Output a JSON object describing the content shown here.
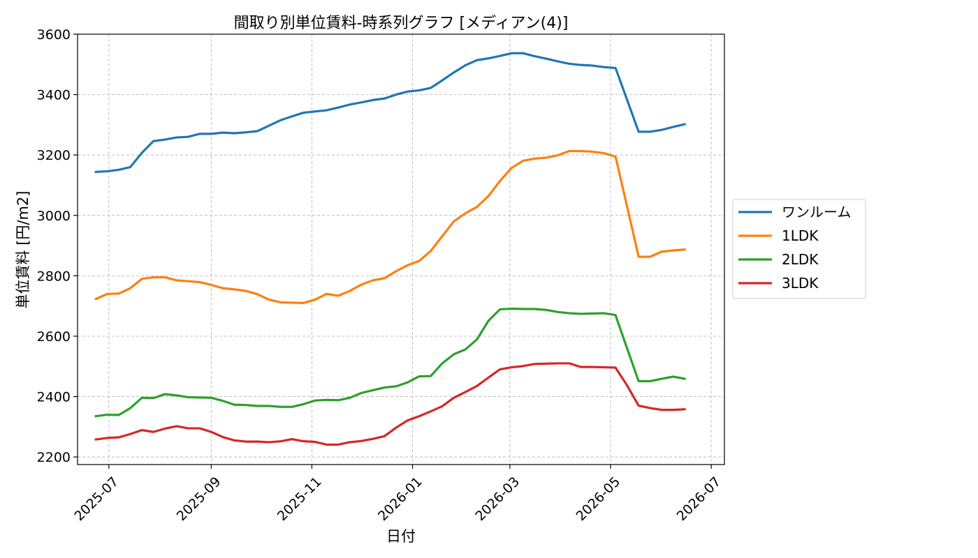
{
  "chart_data": {
    "type": "line",
    "title": "間取り別単位賃料-時系列グラフ [メディアン(4)]",
    "xlabel": "日付",
    "ylabel": "単位賃料 [円/m2]",
    "x_axis_type": "date",
    "xlim": [
      "2025-06-12",
      "2026-07-09"
    ],
    "ylim": [
      2175,
      3600
    ],
    "yticks": [
      2200,
      2400,
      2600,
      2800,
      3000,
      3200,
      3400,
      3600
    ],
    "xticks": [
      "2025-07",
      "2025-09",
      "2025-11",
      "2026-01",
      "2026-03",
      "2026-05",
      "2026-07"
    ],
    "grid": true,
    "legend_position": "right-outside",
    "x": [
      "2025-06-23",
      "2025-06-30",
      "2025-07-07",
      "2025-07-14",
      "2025-07-21",
      "2025-07-28",
      "2025-08-04",
      "2025-08-11",
      "2025-08-18",
      "2025-08-25",
      "2025-09-01",
      "2025-09-08",
      "2025-09-15",
      "2025-09-22",
      "2025-09-29",
      "2025-10-06",
      "2025-10-13",
      "2025-10-20",
      "2025-10-27",
      "2025-11-03",
      "2025-11-10",
      "2025-11-17",
      "2025-11-24",
      "2025-12-01",
      "2025-12-08",
      "2025-12-15",
      "2025-12-22",
      "2025-12-29",
      "2026-01-05",
      "2026-01-12",
      "2026-01-19",
      "2026-01-26",
      "2026-02-02",
      "2026-02-09",
      "2026-02-16",
      "2026-02-23",
      "2026-03-02",
      "2026-03-09",
      "2026-03-16",
      "2026-03-23",
      "2026-03-30",
      "2026-04-06",
      "2026-04-13",
      "2026-04-20",
      "2026-04-27",
      "2026-05-04",
      "2026-05-11",
      "2026-05-18",
      "2026-05-25",
      "2026-06-01",
      "2026-06-08",
      "2026-06-15"
    ],
    "series": [
      {
        "name": "ワンルーム",
        "color": "#1f77b4",
        "values": [
          3144,
          3146,
          3151,
          3160,
          3207,
          3246,
          3251,
          3258,
          3260,
          3270,
          3270,
          3274,
          3272,
          3275,
          3279,
          3297,
          3315,
          3328,
          3340,
          3344,
          3348,
          3357,
          3367,
          3374,
          3382,
          3387,
          3400,
          3410,
          3414,
          3422,
          3447,
          3473,
          3497,
          3514,
          3520,
          3528,
          3537,
          3537,
          3527,
          3519,
          3510,
          3502,
          3498,
          3496,
          3491,
          3488,
          3383,
          3277,
          3277,
          3283,
          3293,
          3302
        ]
      },
      {
        "name": "1LDK",
        "color": "#ff7f0e",
        "values": [
          2723,
          2740,
          2741,
          2759,
          2790,
          2795,
          2795,
          2785,
          2782,
          2779,
          2770,
          2759,
          2755,
          2750,
          2739,
          2721,
          2712,
          2711,
          2710,
          2721,
          2740,
          2734,
          2750,
          2771,
          2785,
          2792,
          2815,
          2835,
          2849,
          2882,
          2931,
          2980,
          3007,
          3028,
          3064,
          3114,
          3157,
          3181,
          3188,
          3191,
          3199,
          3213,
          3213,
          3211,
          3206,
          3195,
          3030,
          2863,
          2863,
          2880,
          2884,
          2887
        ]
      },
      {
        "name": "2LDK",
        "color": "#2ca02c",
        "values": [
          2335,
          2340,
          2339,
          2362,
          2396,
          2395,
          2408,
          2404,
          2398,
          2397,
          2396,
          2386,
          2373,
          2372,
          2369,
          2369,
          2366,
          2366,
          2375,
          2387,
          2389,
          2388,
          2396,
          2412,
          2421,
          2430,
          2434,
          2447,
          2467,
          2468,
          2510,
          2540,
          2556,
          2589,
          2651,
          2689,
          2691,
          2690,
          2690,
          2687,
          2680,
          2676,
          2674,
          2675,
          2676,
          2670,
          2560,
          2451,
          2451,
          2459,
          2466,
          2459
        ]
      },
      {
        "name": "3LDK",
        "color": "#d62728",
        "values": [
          2258,
          2263,
          2265,
          2276,
          2289,
          2283,
          2294,
          2302,
          2295,
          2295,
          2283,
          2266,
          2255,
          2251,
          2251,
          2249,
          2252,
          2259,
          2252,
          2250,
          2241,
          2241,
          2249,
          2253,
          2260,
          2269,
          2297,
          2321,
          2335,
          2351,
          2368,
          2396,
          2415,
          2435,
          2463,
          2490,
          2497,
          2501,
          2508,
          2509,
          2510,
          2510,
          2498,
          2498,
          2497,
          2496,
          2437,
          2370,
          2362,
          2356,
          2356,
          2358
        ]
      }
    ]
  }
}
